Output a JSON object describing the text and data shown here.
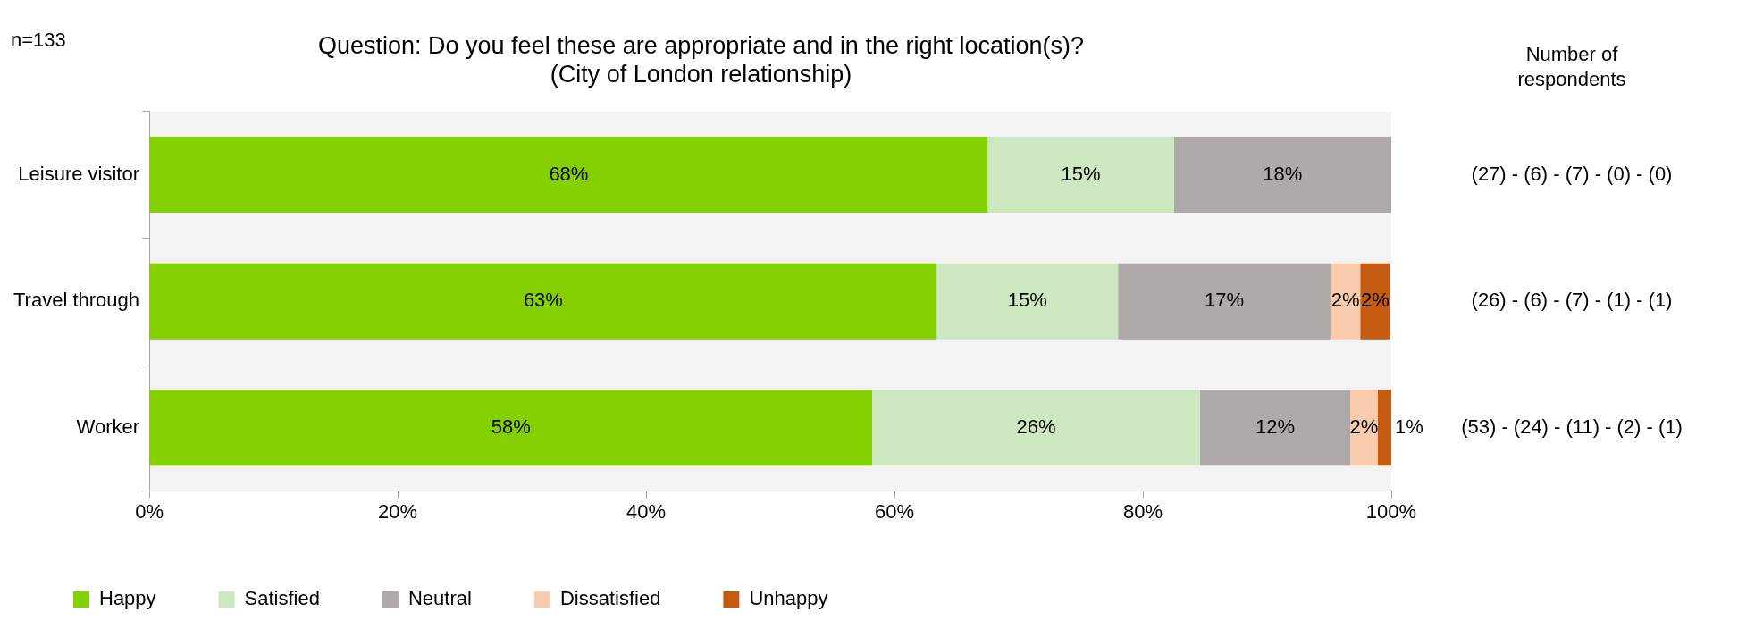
{
  "chart_data": {
    "type": "bar",
    "orientation": "horizontal",
    "stacked": true,
    "title": "Question: Do you feel these are appropriate and in the right location(s)?\n(City of London relationship)",
    "categories": [
      "Leisure visitor",
      "Travel through",
      "Worker"
    ],
    "series": [
      {
        "name": "Happy",
        "color": "#84d000",
        "values": [
          67.5,
          63.4,
          58.2
        ],
        "value_labels": [
          "68%",
          "63%",
          "58%"
        ]
      },
      {
        "name": "Satisfied",
        "color": "#cde8c0",
        "values": [
          15,
          14.6,
          26.4
        ],
        "value_labels": [
          "15%",
          "15%",
          "26%"
        ]
      },
      {
        "name": "Neutral",
        "color": "#aeaaaa",
        "values": [
          17.5,
          17.1,
          12.1
        ],
        "value_labels": [
          "18%",
          "17%",
          "12%"
        ]
      },
      {
        "name": "Dissatisfied",
        "color": "#f8cbad",
        "values": [
          0,
          2.4,
          2.2
        ],
        "value_labels": [
          null,
          "2%",
          "2%"
        ]
      },
      {
        "name": "Unhappy",
        "color": "#c55a11",
        "values": [
          0,
          2.4,
          1.1
        ],
        "value_labels": [
          null,
          "2%",
          "1%"
        ]
      }
    ],
    "xlim": [
      0,
      100
    ],
    "xticks": [
      {
        "value": 0,
        "label": "0%"
      },
      {
        "value": 20,
        "label": "20%"
      },
      {
        "value": 40,
        "label": "40%"
      },
      {
        "value": 60,
        "label": "60%"
      },
      {
        "value": 80,
        "label": "80%"
      },
      {
        "value": 100,
        "label": "100%"
      }
    ],
    "grid": false,
    "legend": "bottom",
    "annotations": [
      "n=133",
      "Number of\nrespondents",
      "(27) - (6) - (7) - (0) - (0)",
      "(26) - (6) - (7) - (1) - (1)",
      "(53) - (24) - (11) - (2) - (1)"
    ]
  }
}
